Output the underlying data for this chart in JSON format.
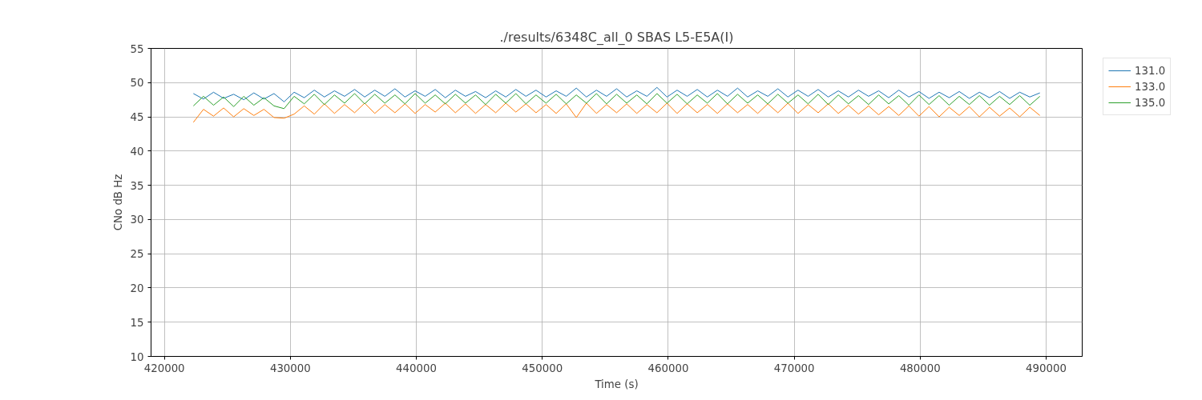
{
  "chart_data": {
    "type": "line",
    "title": "./results/6348C_all_0 SBAS L5-E5A(I)",
    "xlabel": "Time (s)",
    "ylabel": "CNo dB Hz",
    "x": [
      422300,
      423100,
      423900,
      424700,
      425500,
      426300,
      427100,
      427900,
      428700,
      429500,
      430300,
      431100,
      431900,
      432700,
      433500,
      434300,
      435100,
      435900,
      436700,
      437500,
      438300,
      439100,
      439900,
      440700,
      441500,
      442300,
      443100,
      443900,
      444700,
      445500,
      446300,
      447100,
      447900,
      448700,
      449500,
      450300,
      451100,
      451900,
      452700,
      453500,
      454300,
      455100,
      455900,
      456700,
      457500,
      458300,
      459100,
      459900,
      460700,
      461500,
      462300,
      463100,
      463900,
      464700,
      465500,
      466300,
      467100,
      467900,
      468700,
      469500,
      470300,
      471100,
      471900,
      472700,
      473500,
      474300,
      475100,
      475900,
      476700,
      477500,
      478300,
      479100,
      479900,
      480700,
      481500,
      482300,
      483100,
      483900,
      484700,
      485500,
      486300,
      487100,
      487900,
      488700,
      489500
    ],
    "series": [
      {
        "name": "131.0",
        "color": "#1f77b4",
        "values": [
          48.4,
          47.6,
          48.6,
          47.7,
          48.3,
          47.5,
          48.5,
          47.6,
          48.4,
          47.2,
          48.6,
          47.8,
          48.9,
          47.9,
          48.8,
          48.0,
          49.0,
          47.9,
          48.9,
          48.0,
          49.1,
          47.9,
          48.8,
          48.0,
          49.0,
          47.8,
          48.9,
          48.0,
          48.7,
          47.8,
          48.8,
          47.9,
          49.0,
          48.0,
          48.9,
          47.9,
          48.8,
          48.0,
          49.2,
          47.9,
          48.9,
          48.0,
          49.1,
          47.9,
          48.8,
          48.0,
          49.3,
          47.9,
          48.9,
          48.0,
          49.0,
          47.9,
          48.9,
          48.0,
          49.2,
          47.9,
          48.8,
          48.0,
          49.1,
          47.9,
          48.9,
          48.0,
          49.0,
          47.9,
          48.8,
          47.9,
          48.9,
          48.0,
          48.8,
          47.8,
          48.9,
          47.9,
          48.7,
          47.7,
          48.6,
          47.8,
          48.7,
          47.7,
          48.6,
          47.8,
          48.7,
          47.7,
          48.6,
          47.9,
          48.5
        ]
      },
      {
        "name": "133.0",
        "color": "#ff7f0e",
        "values": [
          44.2,
          46.1,
          45.1,
          46.3,
          45.0,
          46.2,
          45.2,
          46.1,
          44.9,
          44.8,
          45.4,
          46.6,
          45.4,
          46.9,
          45.5,
          46.8,
          45.6,
          47.0,
          45.5,
          46.8,
          45.6,
          46.9,
          45.5,
          46.8,
          45.7,
          47.0,
          45.6,
          46.9,
          45.5,
          46.8,
          45.6,
          47.0,
          45.7,
          46.9,
          45.6,
          46.8,
          45.5,
          46.9,
          44.9,
          47.0,
          45.5,
          46.8,
          45.6,
          46.9,
          45.5,
          46.8,
          45.6,
          47.0,
          45.5,
          46.9,
          45.6,
          46.8,
          45.5,
          46.9,
          45.6,
          46.8,
          45.5,
          46.9,
          45.6,
          47.0,
          45.5,
          46.8,
          45.6,
          46.9,
          45.5,
          46.7,
          45.4,
          46.6,
          45.3,
          46.5,
          45.2,
          46.6,
          45.1,
          46.5,
          45.0,
          46.4,
          45.2,
          46.5,
          45.0,
          46.4,
          45.1,
          46.3,
          45.0,
          46.4,
          45.2
        ]
      },
      {
        "name": "135.0",
        "color": "#2ca02c",
        "values": [
          46.6,
          48.0,
          46.7,
          47.9,
          46.5,
          48.0,
          46.7,
          47.8,
          46.6,
          46.2,
          48.0,
          46.9,
          48.3,
          46.8,
          48.2,
          47.0,
          48.4,
          46.9,
          48.3,
          47.0,
          48.2,
          46.9,
          48.4,
          47.0,
          48.2,
          46.9,
          48.3,
          47.0,
          48.2,
          46.8,
          48.3,
          47.0,
          48.4,
          46.9,
          48.2,
          47.0,
          48.3,
          46.9,
          48.2,
          47.0,
          48.4,
          46.9,
          48.3,
          47.0,
          48.2,
          46.9,
          48.4,
          47.0,
          48.3,
          46.9,
          48.2,
          47.0,
          48.4,
          46.9,
          48.3,
          47.0,
          48.2,
          46.9,
          48.3,
          47.0,
          48.2,
          46.9,
          48.3,
          46.8,
          48.2,
          46.9,
          48.1,
          46.8,
          48.2,
          46.9,
          48.1,
          46.7,
          48.2,
          46.8,
          48.1,
          46.7,
          48.0,
          46.8,
          48.1,
          46.7,
          48.0,
          46.8,
          48.1,
          46.7,
          48.0
        ]
      }
    ],
    "xlim": [
      418940,
      492860
    ],
    "xticks": [
      420000,
      430000,
      440000,
      450000,
      460000,
      470000,
      480000,
      490000
    ],
    "ylim": [
      10,
      55
    ],
    "yticks": [
      10,
      15,
      20,
      25,
      30,
      35,
      40,
      45,
      50,
      55
    ],
    "grid": true,
    "legend": "top right",
    "line_style": "solid"
  }
}
